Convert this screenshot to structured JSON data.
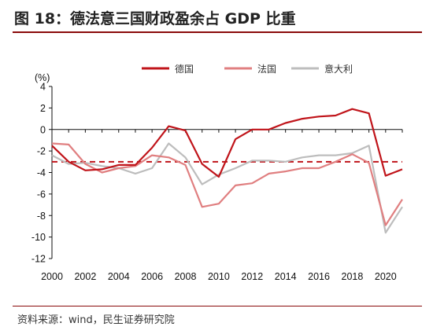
{
  "header": {
    "title": "图 18：德法意三国财政盈余占 GDP 比重"
  },
  "footer": {
    "source": "资料来源：wind，民生证券研究院"
  },
  "colors": {
    "accent": "#8a0a0a",
    "germany": "#c0141a",
    "france": "#e07f80",
    "italy": "#bdbdbd",
    "reference": "#c0141a"
  },
  "chart_data": {
    "type": "line",
    "title": "图 18：德法意三国财政盈余占 GDP 比重",
    "ylabel": "(%)",
    "xlabel": "",
    "ylim": [
      -12,
      4
    ],
    "xlim": [
      2000,
      2021
    ],
    "yticks": [
      4,
      2,
      0,
      -2,
      -4,
      -6,
      -8,
      -10,
      -12
    ],
    "xticks": [
      2000,
      2002,
      2004,
      2006,
      2008,
      2010,
      2012,
      2014,
      2016,
      2018,
      2020
    ],
    "legend_position": "top-right",
    "grid": false,
    "reference_line": {
      "y": -3,
      "style": "dashed"
    },
    "x": [
      2000,
      2001,
      2002,
      2003,
      2004,
      2005,
      2006,
      2007,
      2008,
      2009,
      2010,
      2011,
      2012,
      2013,
      2014,
      2015,
      2016,
      2017,
      2018,
      2019,
      2020,
      2021
    ],
    "series": [
      {
        "name": "德国",
        "values": [
          -1.5,
          -3.0,
          -3.8,
          -3.7,
          -3.3,
          -3.3,
          -1.7,
          0.3,
          -0.1,
          -3.2,
          -4.4,
          -0.9,
          0.0,
          0.0,
          0.6,
          1.0,
          1.2,
          1.3,
          1.9,
          1.5,
          -4.3,
          -3.7
        ]
      },
      {
        "name": "法国",
        "values": [
          -1.3,
          -1.4,
          -3.2,
          -4.0,
          -3.6,
          -3.4,
          -2.4,
          -2.6,
          -3.3,
          -7.2,
          -6.9,
          -5.2,
          -5.0,
          -4.1,
          -3.9,
          -3.6,
          -3.6,
          -3.0,
          -2.3,
          -3.1,
          -8.9,
          -6.5
        ]
      },
      {
        "name": "意大利",
        "values": [
          -2.4,
          -3.2,
          -3.1,
          -3.4,
          -3.6,
          -4.1,
          -3.6,
          -1.3,
          -2.6,
          -5.1,
          -4.2,
          -3.6,
          -2.9,
          -2.9,
          -3.0,
          -2.6,
          -2.4,
          -2.4,
          -2.2,
          -1.5,
          -9.6,
          -7.2
        ]
      }
    ]
  }
}
